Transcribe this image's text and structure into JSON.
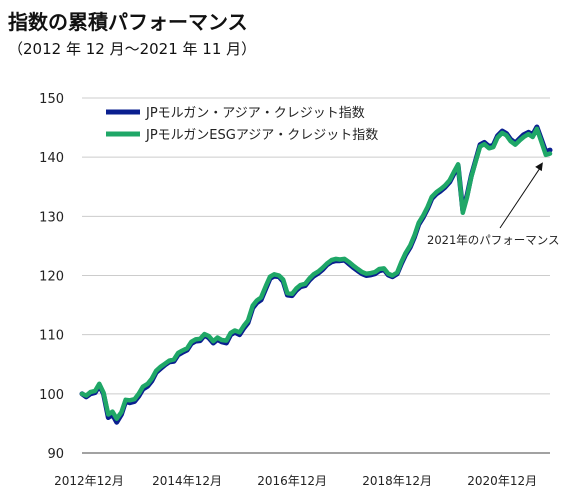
{
  "header": {
    "title": "指数の累積パフォーマンス",
    "subtitle": "（2012 年 12 月〜2021 年 11 月）"
  },
  "colors": {
    "series1": "#0a1f8f",
    "series2": "#1fa767",
    "grid": "#cccccc"
  },
  "chart_data": {
    "type": "line",
    "title": "指数の累積パフォーマンス",
    "subtitle": "（2012 年 12 月〜2021 年 11 月）",
    "xlim": [
      2012.92,
      2021.83
    ],
    "ylim": [
      90,
      150
    ],
    "yticks": [
      90,
      100,
      110,
      120,
      130,
      140,
      150
    ],
    "xtick_labels": [
      {
        "x": 2012.92,
        "label": "2012年12月"
      },
      {
        "x": 2014.92,
        "label": "2014年12月"
      },
      {
        "x": 2016.92,
        "label": "2016年12月"
      },
      {
        "x": 2018.92,
        "label": "2018年12月"
      },
      {
        "x": 2020.92,
        "label": "2020年12月"
      }
    ],
    "grid": true,
    "legend_position": "top-left",
    "annotation": {
      "text": "2021年のパフォーマンス",
      "x": 2021.79,
      "y": 140.5
    },
    "series": [
      {
        "name": "JPモルガン・アジア・クレジット指数",
        "color": "#0a1f8f",
        "points": [
          [
            2012.92,
            100.0
          ],
          [
            2013.0,
            99.5
          ],
          [
            2013.08,
            100.0
          ],
          [
            2013.17,
            100.2
          ],
          [
            2013.25,
            101.4
          ],
          [
            2013.33,
            100.0
          ],
          [
            2013.42,
            96.0
          ],
          [
            2013.5,
            96.5
          ],
          [
            2013.58,
            95.2
          ],
          [
            2013.67,
            96.5
          ],
          [
            2013.75,
            98.7
          ],
          [
            2013.83,
            98.5
          ],
          [
            2013.92,
            98.7
          ],
          [
            2014.0,
            99.6
          ],
          [
            2014.08,
            100.8
          ],
          [
            2014.17,
            101.3
          ],
          [
            2014.25,
            102.2
          ],
          [
            2014.33,
            103.6
          ],
          [
            2014.42,
            104.3
          ],
          [
            2014.5,
            104.9
          ],
          [
            2014.58,
            105.4
          ],
          [
            2014.67,
            105.5
          ],
          [
            2014.75,
            106.6
          ],
          [
            2014.83,
            107.0
          ],
          [
            2014.92,
            107.4
          ],
          [
            2015.0,
            108.5
          ],
          [
            2015.08,
            108.9
          ],
          [
            2015.17,
            109.0
          ],
          [
            2015.25,
            109.9
          ],
          [
            2015.33,
            109.5
          ],
          [
            2015.42,
            108.6
          ],
          [
            2015.5,
            109.2
          ],
          [
            2015.58,
            108.8
          ],
          [
            2015.67,
            108.6
          ],
          [
            2015.75,
            110.0
          ],
          [
            2015.83,
            110.4
          ],
          [
            2015.92,
            110.0
          ],
          [
            2016.0,
            111.1
          ],
          [
            2016.08,
            112.0
          ],
          [
            2016.17,
            114.5
          ],
          [
            2016.25,
            115.4
          ],
          [
            2016.33,
            115.9
          ],
          [
            2016.42,
            117.8
          ],
          [
            2016.5,
            119.5
          ],
          [
            2016.58,
            119.9
          ],
          [
            2016.67,
            119.8
          ],
          [
            2016.75,
            119.0
          ],
          [
            2016.83,
            116.7
          ],
          [
            2016.92,
            116.6
          ],
          [
            2017.0,
            117.5
          ],
          [
            2017.08,
            118.1
          ],
          [
            2017.17,
            118.3
          ],
          [
            2017.25,
            119.2
          ],
          [
            2017.33,
            119.9
          ],
          [
            2017.42,
            120.4
          ],
          [
            2017.5,
            121.0
          ],
          [
            2017.58,
            121.8
          ],
          [
            2017.67,
            122.3
          ],
          [
            2017.75,
            122.5
          ],
          [
            2017.83,
            122.5
          ],
          [
            2017.92,
            122.6
          ],
          [
            2018.0,
            122.0
          ],
          [
            2018.08,
            121.4
          ],
          [
            2018.17,
            120.8
          ],
          [
            2018.25,
            120.3
          ],
          [
            2018.33,
            120.0
          ],
          [
            2018.42,
            120.1
          ],
          [
            2018.5,
            120.3
          ],
          [
            2018.58,
            120.8
          ],
          [
            2018.67,
            121.0
          ],
          [
            2018.75,
            120.1
          ],
          [
            2018.83,
            119.8
          ],
          [
            2018.92,
            120.3
          ],
          [
            2019.0,
            122.0
          ],
          [
            2019.08,
            123.5
          ],
          [
            2019.17,
            124.8
          ],
          [
            2019.25,
            126.5
          ],
          [
            2019.33,
            128.6
          ],
          [
            2019.42,
            129.9
          ],
          [
            2019.5,
            131.3
          ],
          [
            2019.58,
            133.0
          ],
          [
            2019.67,
            133.8
          ],
          [
            2019.75,
            134.3
          ],
          [
            2019.83,
            134.9
          ],
          [
            2019.92,
            135.8
          ],
          [
            2020.0,
            137.2
          ],
          [
            2020.08,
            138.6
          ],
          [
            2020.17,
            131.0
          ],
          [
            2020.25,
            133.5
          ],
          [
            2020.33,
            136.8
          ],
          [
            2020.42,
            139.6
          ],
          [
            2020.5,
            142.1
          ],
          [
            2020.58,
            142.5
          ],
          [
            2020.67,
            141.8
          ],
          [
            2020.75,
            142.0
          ],
          [
            2020.83,
            143.6
          ],
          [
            2020.92,
            144.4
          ],
          [
            2021.0,
            144.0
          ],
          [
            2021.08,
            143.0
          ],
          [
            2021.17,
            142.4
          ],
          [
            2021.25,
            143.1
          ],
          [
            2021.33,
            143.8
          ],
          [
            2021.42,
            144.2
          ],
          [
            2021.5,
            143.8
          ],
          [
            2021.58,
            145.1
          ],
          [
            2021.67,
            142.9
          ],
          [
            2021.75,
            140.9
          ],
          [
            2021.83,
            141.2
          ]
        ]
      },
      {
        "name": "JPモルガンESGアジア・クレジット指数",
        "color": "#1fa767",
        "points": [
          [
            2012.92,
            100.0
          ],
          [
            2013.0,
            99.7
          ],
          [
            2013.08,
            100.3
          ],
          [
            2013.17,
            100.5
          ],
          [
            2013.25,
            101.7
          ],
          [
            2013.33,
            100.2
          ],
          [
            2013.42,
            96.5
          ],
          [
            2013.5,
            97.0
          ],
          [
            2013.58,
            95.8
          ],
          [
            2013.67,
            96.9
          ],
          [
            2013.75,
            99.0
          ],
          [
            2013.83,
            98.9
          ],
          [
            2013.92,
            99.1
          ],
          [
            2014.0,
            100.0
          ],
          [
            2014.08,
            101.2
          ],
          [
            2014.17,
            101.7
          ],
          [
            2014.25,
            102.6
          ],
          [
            2014.33,
            103.9
          ],
          [
            2014.42,
            104.6
          ],
          [
            2014.5,
            105.1
          ],
          [
            2014.58,
            105.6
          ],
          [
            2014.67,
            105.8
          ],
          [
            2014.75,
            106.9
          ],
          [
            2014.83,
            107.3
          ],
          [
            2014.92,
            107.7
          ],
          [
            2015.0,
            108.8
          ],
          [
            2015.08,
            109.2
          ],
          [
            2015.17,
            109.3
          ],
          [
            2015.25,
            110.1
          ],
          [
            2015.33,
            109.8
          ],
          [
            2015.42,
            108.9
          ],
          [
            2015.5,
            109.5
          ],
          [
            2015.58,
            109.1
          ],
          [
            2015.67,
            109.0
          ],
          [
            2015.75,
            110.3
          ],
          [
            2015.83,
            110.7
          ],
          [
            2015.92,
            110.4
          ],
          [
            2016.0,
            111.5
          ],
          [
            2016.08,
            112.4
          ],
          [
            2016.17,
            114.9
          ],
          [
            2016.25,
            115.8
          ],
          [
            2016.33,
            116.3
          ],
          [
            2016.42,
            118.2
          ],
          [
            2016.5,
            119.8
          ],
          [
            2016.58,
            120.2
          ],
          [
            2016.67,
            120.0
          ],
          [
            2016.75,
            119.3
          ],
          [
            2016.83,
            117.0
          ],
          [
            2016.92,
            116.9
          ],
          [
            2017.0,
            117.8
          ],
          [
            2017.08,
            118.4
          ],
          [
            2017.17,
            118.6
          ],
          [
            2017.25,
            119.5
          ],
          [
            2017.33,
            120.2
          ],
          [
            2017.42,
            120.7
          ],
          [
            2017.5,
            121.3
          ],
          [
            2017.58,
            122.0
          ],
          [
            2017.67,
            122.6
          ],
          [
            2017.75,
            122.8
          ],
          [
            2017.83,
            122.7
          ],
          [
            2017.92,
            122.8
          ],
          [
            2018.0,
            122.3
          ],
          [
            2018.08,
            121.7
          ],
          [
            2018.17,
            121.1
          ],
          [
            2018.25,
            120.6
          ],
          [
            2018.33,
            120.3
          ],
          [
            2018.42,
            120.4
          ],
          [
            2018.5,
            120.6
          ],
          [
            2018.58,
            121.1
          ],
          [
            2018.67,
            121.2
          ],
          [
            2018.75,
            120.3
          ],
          [
            2018.83,
            120.0
          ],
          [
            2018.92,
            120.5
          ],
          [
            2019.0,
            122.3
          ],
          [
            2019.08,
            123.8
          ],
          [
            2019.17,
            125.1
          ],
          [
            2019.25,
            126.8
          ],
          [
            2019.33,
            128.9
          ],
          [
            2019.42,
            130.2
          ],
          [
            2019.5,
            131.6
          ],
          [
            2019.58,
            133.3
          ],
          [
            2019.67,
            134.1
          ],
          [
            2019.75,
            134.6
          ],
          [
            2019.83,
            135.2
          ],
          [
            2019.92,
            136.1
          ],
          [
            2020.0,
            137.5
          ],
          [
            2020.08,
            138.8
          ],
          [
            2020.17,
            130.6
          ],
          [
            2020.25,
            133.2
          ],
          [
            2020.33,
            136.6
          ],
          [
            2020.42,
            139.4
          ],
          [
            2020.5,
            141.8
          ],
          [
            2020.58,
            142.2
          ],
          [
            2020.67,
            141.5
          ],
          [
            2020.75,
            141.7
          ],
          [
            2020.83,
            143.3
          ],
          [
            2020.92,
            144.1
          ],
          [
            2021.0,
            143.7
          ],
          [
            2021.08,
            142.7
          ],
          [
            2021.17,
            142.1
          ],
          [
            2021.25,
            142.8
          ],
          [
            2021.33,
            143.4
          ],
          [
            2021.42,
            143.9
          ],
          [
            2021.5,
            143.4
          ],
          [
            2021.58,
            144.8
          ],
          [
            2021.67,
            142.5
          ],
          [
            2021.75,
            140.4
          ],
          [
            2021.83,
            140.6
          ]
        ]
      }
    ]
  }
}
